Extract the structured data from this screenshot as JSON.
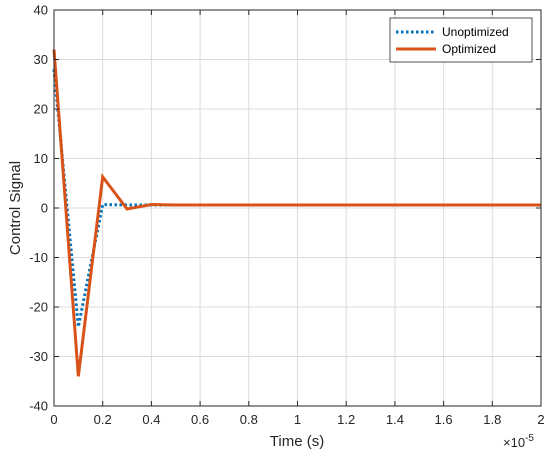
{
  "chart_data": {
    "type": "line",
    "xlabel": "Time (s)",
    "ylabel": "Control Signal",
    "xlim": [
      0,
      2
    ],
    "ylim": [
      -40,
      40
    ],
    "x_ticks": [
      "0",
      "0.2",
      "0.4",
      "0.6",
      "0.8",
      "1",
      "1.2",
      "1.4",
      "1.6",
      "1.8",
      "2"
    ],
    "y_ticks": [
      "-40",
      "-30",
      "-20",
      "-10",
      "0",
      "10",
      "20",
      "30",
      "40"
    ],
    "x_exponent": {
      "base": "×10",
      "power": "-5"
    },
    "grid": true,
    "legend_position": "top-right",
    "series": [
      {
        "name": "Unoptimized",
        "color": "#0072BD",
        "style": "dotted",
        "x": [
          0,
          0.1,
          0.2,
          0.3,
          0.4,
          0.5,
          2.0
        ],
        "y": [
          28,
          -24,
          0.7,
          0.6,
          0.6,
          0.6,
          0.6
        ]
      },
      {
        "name": "Optimized",
        "color": "#D95319",
        "style": "solid",
        "x": [
          0,
          0.1,
          0.2,
          0.3,
          0.4,
          0.5,
          2.0
        ],
        "y": [
          32,
          -34,
          6.3,
          -0.2,
          0.7,
          0.6,
          0.6
        ]
      }
    ]
  }
}
